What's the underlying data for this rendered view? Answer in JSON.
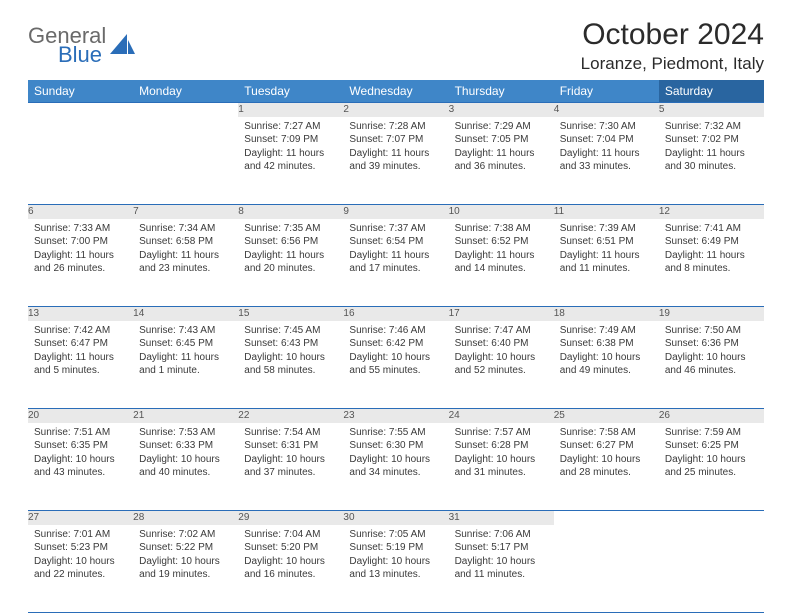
{
  "logo": {
    "part1": "General",
    "part2": "Blue"
  },
  "title": "October 2024",
  "location": "Loranze, Piedmont, Italy",
  "colors": {
    "header_bg": "#3f86c8",
    "header_sat_bg": "#2965a0",
    "border": "#2a6db8",
    "daynum_bg": "#e9e9e9",
    "text": "#3a3a3a"
  },
  "weekdays": [
    "Sunday",
    "Monday",
    "Tuesday",
    "Wednesday",
    "Thursday",
    "Friday",
    "Saturday"
  ],
  "weeks": [
    [
      null,
      null,
      {
        "n": "1",
        "sunrise": "7:27 AM",
        "sunset": "7:09 PM",
        "daylight": "11 hours and 42 minutes."
      },
      {
        "n": "2",
        "sunrise": "7:28 AM",
        "sunset": "7:07 PM",
        "daylight": "11 hours and 39 minutes."
      },
      {
        "n": "3",
        "sunrise": "7:29 AM",
        "sunset": "7:05 PM",
        "daylight": "11 hours and 36 minutes."
      },
      {
        "n": "4",
        "sunrise": "7:30 AM",
        "sunset": "7:04 PM",
        "daylight": "11 hours and 33 minutes."
      },
      {
        "n": "5",
        "sunrise": "7:32 AM",
        "sunset": "7:02 PM",
        "daylight": "11 hours and 30 minutes."
      }
    ],
    [
      {
        "n": "6",
        "sunrise": "7:33 AM",
        "sunset": "7:00 PM",
        "daylight": "11 hours and 26 minutes."
      },
      {
        "n": "7",
        "sunrise": "7:34 AM",
        "sunset": "6:58 PM",
        "daylight": "11 hours and 23 minutes."
      },
      {
        "n": "8",
        "sunrise": "7:35 AM",
        "sunset": "6:56 PM",
        "daylight": "11 hours and 20 minutes."
      },
      {
        "n": "9",
        "sunrise": "7:37 AM",
        "sunset": "6:54 PM",
        "daylight": "11 hours and 17 minutes."
      },
      {
        "n": "10",
        "sunrise": "7:38 AM",
        "sunset": "6:52 PM",
        "daylight": "11 hours and 14 minutes."
      },
      {
        "n": "11",
        "sunrise": "7:39 AM",
        "sunset": "6:51 PM",
        "daylight": "11 hours and 11 minutes."
      },
      {
        "n": "12",
        "sunrise": "7:41 AM",
        "sunset": "6:49 PM",
        "daylight": "11 hours and 8 minutes."
      }
    ],
    [
      {
        "n": "13",
        "sunrise": "7:42 AM",
        "sunset": "6:47 PM",
        "daylight": "11 hours and 5 minutes."
      },
      {
        "n": "14",
        "sunrise": "7:43 AM",
        "sunset": "6:45 PM",
        "daylight": "11 hours and 1 minute."
      },
      {
        "n": "15",
        "sunrise": "7:45 AM",
        "sunset": "6:43 PM",
        "daylight": "10 hours and 58 minutes."
      },
      {
        "n": "16",
        "sunrise": "7:46 AM",
        "sunset": "6:42 PM",
        "daylight": "10 hours and 55 minutes."
      },
      {
        "n": "17",
        "sunrise": "7:47 AM",
        "sunset": "6:40 PM",
        "daylight": "10 hours and 52 minutes."
      },
      {
        "n": "18",
        "sunrise": "7:49 AM",
        "sunset": "6:38 PM",
        "daylight": "10 hours and 49 minutes."
      },
      {
        "n": "19",
        "sunrise": "7:50 AM",
        "sunset": "6:36 PM",
        "daylight": "10 hours and 46 minutes."
      }
    ],
    [
      {
        "n": "20",
        "sunrise": "7:51 AM",
        "sunset": "6:35 PM",
        "daylight": "10 hours and 43 minutes."
      },
      {
        "n": "21",
        "sunrise": "7:53 AM",
        "sunset": "6:33 PM",
        "daylight": "10 hours and 40 minutes."
      },
      {
        "n": "22",
        "sunrise": "7:54 AM",
        "sunset": "6:31 PM",
        "daylight": "10 hours and 37 minutes."
      },
      {
        "n": "23",
        "sunrise": "7:55 AM",
        "sunset": "6:30 PM",
        "daylight": "10 hours and 34 minutes."
      },
      {
        "n": "24",
        "sunrise": "7:57 AM",
        "sunset": "6:28 PM",
        "daylight": "10 hours and 31 minutes."
      },
      {
        "n": "25",
        "sunrise": "7:58 AM",
        "sunset": "6:27 PM",
        "daylight": "10 hours and 28 minutes."
      },
      {
        "n": "26",
        "sunrise": "7:59 AM",
        "sunset": "6:25 PM",
        "daylight": "10 hours and 25 minutes."
      }
    ],
    [
      {
        "n": "27",
        "sunrise": "7:01 AM",
        "sunset": "5:23 PM",
        "daylight": "10 hours and 22 minutes."
      },
      {
        "n": "28",
        "sunrise": "7:02 AM",
        "sunset": "5:22 PM",
        "daylight": "10 hours and 19 minutes."
      },
      {
        "n": "29",
        "sunrise": "7:04 AM",
        "sunset": "5:20 PM",
        "daylight": "10 hours and 16 minutes."
      },
      {
        "n": "30",
        "sunrise": "7:05 AM",
        "sunset": "5:19 PM",
        "daylight": "10 hours and 13 minutes."
      },
      {
        "n": "31",
        "sunrise": "7:06 AM",
        "sunset": "5:17 PM",
        "daylight": "10 hours and 11 minutes."
      },
      null,
      null
    ]
  ]
}
